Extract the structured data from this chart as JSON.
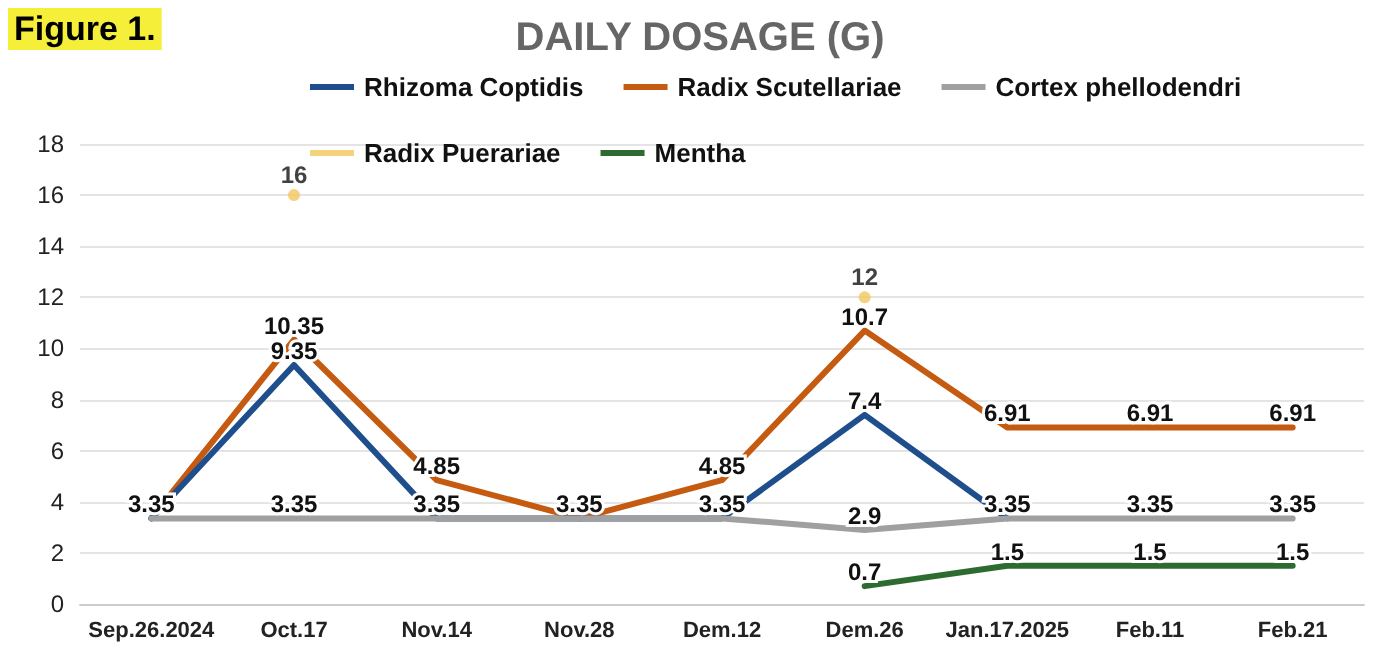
{
  "chart_data": {
    "type": "line",
    "title": "DAILY DOSAGE (G)",
    "annotations": [
      "Figure 1."
    ],
    "categories": [
      "Sep.26.2024",
      "Oct.17",
      "Nov.14",
      "Nov.28",
      "Dem.12",
      "Dem.26",
      "Jan.17.2025",
      "Feb.11",
      "Feb.21"
    ],
    "series": [
      {
        "name": "Rhizoma Coptidis",
        "color": "#1f4e8c",
        "values": [
          3.35,
          9.35,
          3.35,
          3.35,
          3.35,
          7.4,
          3.35,
          null,
          null
        ],
        "value_labels": [
          null,
          "9.35",
          null,
          null,
          null,
          "7.4",
          null,
          null,
          null
        ]
      },
      {
        "name": "Radix Scutellariae",
        "color": "#c55a11",
        "values": [
          3.35,
          10.35,
          4.85,
          3.35,
          4.85,
          10.7,
          6.91,
          6.91,
          6.91
        ],
        "value_labels": [
          null,
          "10.35",
          "4.85",
          null,
          "4.85",
          "10.7",
          "6.91",
          "6.91",
          "6.91"
        ]
      },
      {
        "name": "Cortex phellodendri",
        "color": "#a0a0a0",
        "values": [
          3.35,
          3.35,
          3.35,
          3.35,
          3.35,
          2.9,
          3.35,
          3.35,
          3.35
        ],
        "value_labels": [
          "3.35",
          "3.35",
          "3.35",
          "3.35",
          "3.35",
          "2.9",
          "3.35",
          "3.35",
          "3.35"
        ]
      },
      {
        "name": "Radix Puerariae",
        "type": "scatter",
        "color": "#f2c75c",
        "marker": "circle",
        "values": [
          null,
          16,
          null,
          null,
          null,
          12,
          null,
          null,
          null
        ],
        "value_labels": [
          null,
          "16",
          null,
          null,
          null,
          "12",
          null,
          null,
          null
        ]
      },
      {
        "name": "Mentha",
        "color": "#2e6b30",
        "values": [
          null,
          null,
          null,
          null,
          null,
          0.7,
          1.5,
          1.5,
          1.5
        ],
        "value_labels": [
          null,
          null,
          null,
          null,
          null,
          "0.7",
          "1.5",
          "1.5",
          "1.5"
        ]
      }
    ],
    "ylim": [
      0,
      18
    ],
    "yticks": [
      0,
      2,
      4,
      6,
      8,
      10,
      12,
      14,
      16,
      18
    ],
    "grid": "y",
    "legend": "top",
    "marker": "none"
  }
}
